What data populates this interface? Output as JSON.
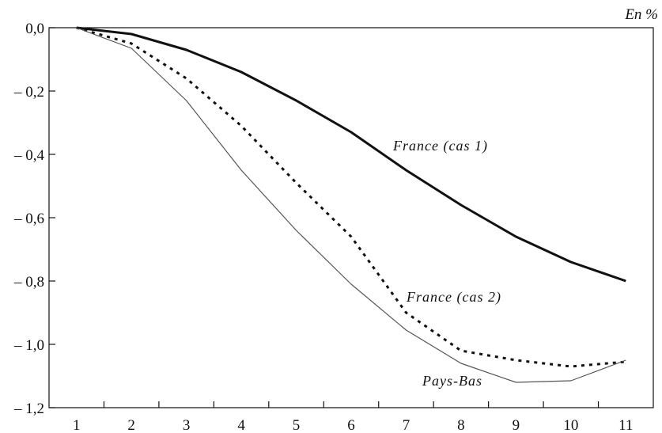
{
  "chart_data": {
    "type": "line",
    "unit_label": "En %",
    "x": [
      1,
      2,
      3,
      4,
      5,
      6,
      7,
      8,
      9,
      10,
      11
    ],
    "x_tick_labels": [
      "1",
      "2",
      "3",
      "4",
      "5",
      "6",
      "7",
      "8",
      "9",
      "10",
      "11"
    ],
    "xlim": [
      0.5,
      11.5
    ],
    "ylim": [
      -1.2,
      0.0
    ],
    "y_ticks": [
      0.0,
      -0.2,
      -0.4,
      -0.6,
      -0.8,
      -1.0,
      -1.2
    ],
    "y_tick_labels": [
      "0,0",
      "– 0,2",
      "– 0,4",
      "– 0,6",
      "– 0,8",
      "– 1,0",
      "– 1,2"
    ],
    "grid": false,
    "series": [
      {
        "name": "France (cas 1)",
        "style": "solid-thick",
        "color": "#111111",
        "values": [
          0.0,
          -0.02,
          -0.07,
          -0.14,
          -0.23,
          -0.33,
          -0.45,
          -0.56,
          -0.66,
          -0.74,
          -0.8
        ]
      },
      {
        "name": "France (cas 2)",
        "style": "dotted",
        "color": "#111111",
        "values": [
          0.0,
          -0.05,
          -0.16,
          -0.31,
          -0.49,
          -0.66,
          -0.9,
          -1.02,
          -1.05,
          -1.07,
          -1.055
        ]
      },
      {
        "name": "Pays-Bas",
        "style": "solid-thin",
        "color": "#555555",
        "values": [
          0.0,
          -0.065,
          -0.23,
          -0.45,
          -0.64,
          -0.81,
          -0.955,
          -1.06,
          -1.12,
          -1.115,
          -1.05
        ]
      }
    ]
  }
}
